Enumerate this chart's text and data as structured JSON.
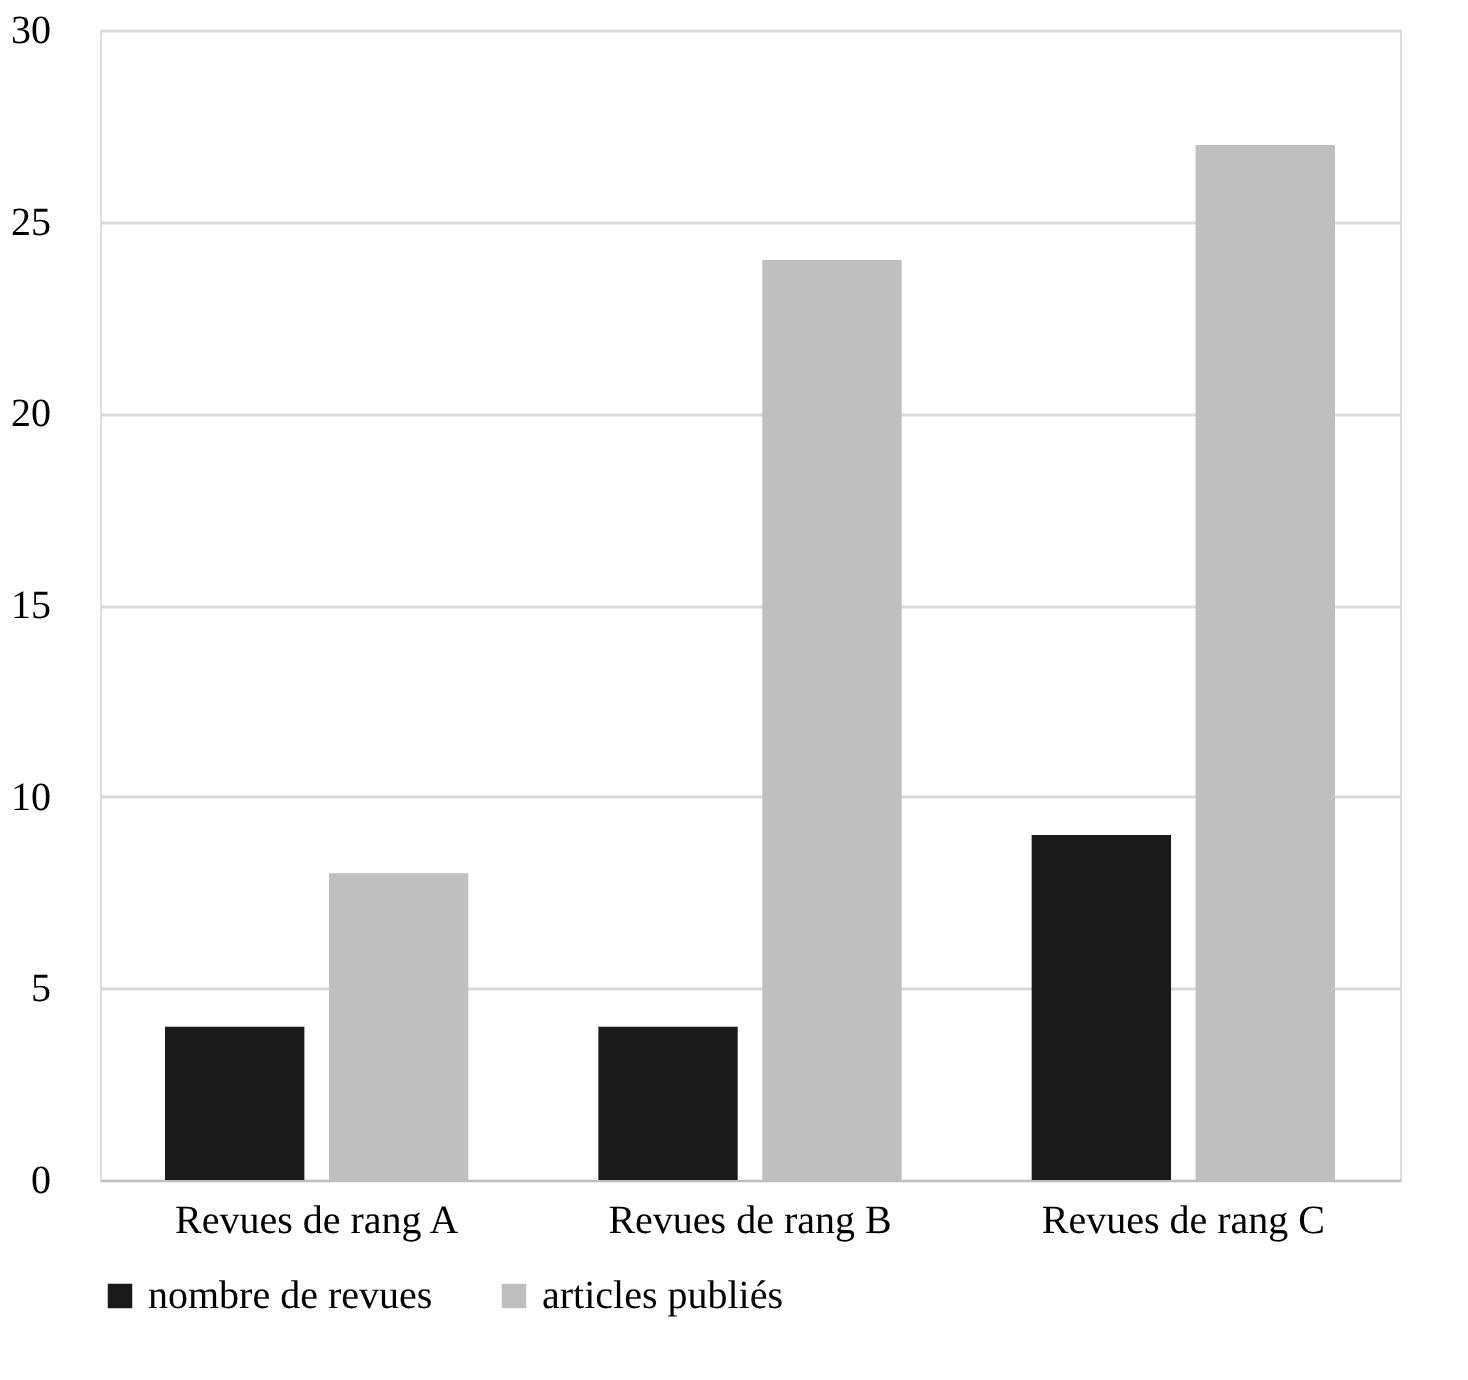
{
  "chart_data": {
    "type": "bar",
    "categories": [
      "Revues de rang A",
      "Revues de rang B",
      "Revues de rang C"
    ],
    "series": [
      {
        "name": "nombre de revues",
        "color": "#1a1a1a",
        "values": [
          4,
          4,
          9
        ]
      },
      {
        "name": "articles publiés",
        "color": "#bfbfbf",
        "values": [
          8,
          24,
          27
        ]
      }
    ],
    "ylim": [
      0,
      30
    ],
    "yticks": [
      0,
      5,
      10,
      15,
      20,
      25,
      30
    ],
    "grid": "y",
    "legend": "bottom"
  }
}
